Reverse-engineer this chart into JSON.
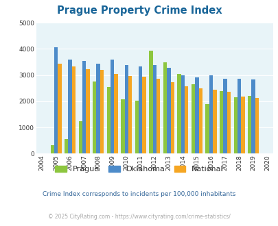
{
  "title": "Prague Property Crime Index",
  "years": [
    2004,
    2005,
    2006,
    2007,
    2008,
    2009,
    2010,
    2011,
    2012,
    2013,
    2014,
    2015,
    2016,
    2017,
    2018,
    2019,
    2020
  ],
  "prague": [
    null,
    320,
    550,
    1240,
    2750,
    2550,
    2075,
    2020,
    3930,
    3480,
    3050,
    2650,
    1900,
    2390,
    2160,
    2200,
    null
  ],
  "oklahoma": [
    null,
    4060,
    3600,
    3530,
    3440,
    3580,
    3380,
    3340,
    3380,
    3280,
    3000,
    2900,
    3000,
    2870,
    2870,
    2840,
    null
  ],
  "national": [
    null,
    3440,
    3330,
    3230,
    3190,
    3030,
    2950,
    2940,
    2870,
    2720,
    2570,
    2480,
    2450,
    2370,
    2190,
    2120,
    null
  ],
  "prague_color": "#8dc63f",
  "oklahoma_color": "#4d8bc9",
  "national_color": "#f5a623",
  "bg_color": "#e8f4f8",
  "ylim": [
    0,
    5000
  ],
  "yticks": [
    0,
    1000,
    2000,
    3000,
    4000,
    5000
  ],
  "subtitle": "Crime Index corresponds to incidents per 100,000 inhabitants",
  "footer": "© 2025 CityRating.com - https://www.cityrating.com/crime-statistics/",
  "title_color": "#1a6699",
  "subtitle_color": "#336699",
  "footer_color": "#aaaaaa",
  "bar_width": 0.26
}
